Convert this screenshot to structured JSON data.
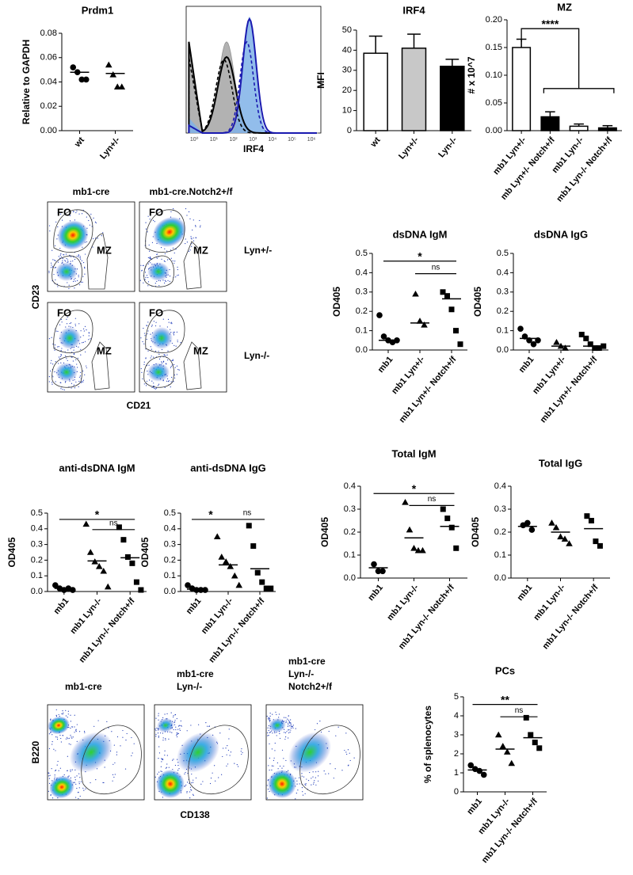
{
  "chart_data": [
    {
      "type": "dot",
      "title": "Prdm1",
      "ylabel": "Relative to GAPDH",
      "categories": [
        "wt",
        "Lyn+/-"
      ],
      "markers": [
        "circle",
        "triangle"
      ],
      "points": [
        [
          0.052,
          0.048,
          0.042,
          0.042
        ],
        [
          0.054,
          0.046,
          0.036,
          0.036
        ]
      ],
      "means": [
        0.048,
        0.047
      ],
      "ylim": [
        0,
        0.08
      ],
      "yticks": [
        {
          "value": 0,
          "label": "0.00"
        },
        {
          "value": 0.02,
          "label": "0.02"
        },
        {
          "value": 0.04,
          "label": "0.04"
        },
        {
          "value": 0.06,
          "label": "0.06"
        },
        {
          "value": 0.08,
          "label": "0.08"
        }
      ],
      "color": "#000000"
    },
    {
      "type": "flow-histogram",
      "xlabel": "IRF4",
      "xticks": [
        "10⁰",
        "10¹",
        "10²",
        "10³",
        "10⁴",
        "10⁵",
        "10⁶"
      ]
    },
    {
      "type": "bar",
      "title": "IRF4",
      "ylabel": "MFI",
      "categories": [
        "wt",
        "Lyn+/-",
        "Lyn-/-"
      ],
      "values": [
        38.5,
        41,
        32
      ],
      "errors": [
        8.5,
        7,
        3.5
      ],
      "colors": [
        "#ffffff",
        "#c8c8c8",
        "#000000"
      ],
      "ylim": [
        0,
        50
      ],
      "yticks": [
        0,
        10,
        20,
        30,
        40,
        50
      ]
    },
    {
      "type": "bar",
      "title": "MZ",
      "ylabel": "# x 10^7",
      "categories": [
        "mb1 Lyn+/-",
        "mb Lyn+/- Notch+/f",
        "mb1 Lyn-/-",
        "mb1 Lyn-/- Notch+/f"
      ],
      "values": [
        0.15,
        0.025,
        0.008,
        0.005
      ],
      "errors": [
        0.015,
        0.009,
        0.004,
        0.004
      ],
      "colors": [
        "#ffffff",
        "#000000",
        "#ffffff",
        "#000000"
      ],
      "ylim": [
        0,
        0.2
      ],
      "yticks": [
        {
          "value": 0,
          "label": "0.00"
        },
        {
          "value": 0.05,
          "label": "0.05"
        },
        {
          "value": 0.1,
          "label": "0.10"
        },
        {
          "value": 0.15,
          "label": "0.15"
        },
        {
          "value": 0.2,
          "label": "0.20"
        }
      ],
      "comparisons": [
        {
          "label": "****",
          "groups": [
            "mb1 Lyn+/-",
            [
              "mb Lyn+/- Notch+/f",
              "mb1 Lyn-/-",
              "mb1 Lyn-/- Notch+/f"
            ]
          ]
        }
      ]
    },
    {
      "type": "flow-grid",
      "columns": [
        "mb1-cre",
        "mb1-cre.Notch2+/f"
      ],
      "rows": [
        "Lyn+/-",
        "Lyn-/-"
      ],
      "gates": [
        "FO",
        "MZ"
      ],
      "ylabel": "CD23",
      "xlabel": "CD21"
    },
    {
      "type": "dot",
      "title": "dsDNA IgM",
      "ylabel": "OD405",
      "categories": [
        "mb1",
        "mb1 Lyn+/-",
        "mb1 Lyn+/- Notch+/f"
      ],
      "markers": [
        "circle",
        "triangle",
        "square"
      ],
      "points": [
        [
          0.18,
          0.07,
          0.05,
          0.04,
          0.05
        ],
        [
          0.29,
          0.15,
          0.13
        ],
        [
          0.3,
          0.28,
          0.21,
          0.1,
          0.03
        ]
      ],
      "means": [
        0.05,
        0.14,
        0.265
      ],
      "ylim": [
        0,
        0.5
      ],
      "yticks": [
        {
          "value": 0,
          "label": "0.0"
        },
        0.1,
        0.2,
        0.3,
        0.4,
        0.5
      ],
      "color": "#000000",
      "comparisons": [
        {
          "label": "*",
          "groups": [
            "mb1",
            "mb1 Lyn+/- Notch+/f"
          ]
        },
        {
          "label": "ns",
          "groups": [
            "mb1 Lyn+/-",
            "mb1 Lyn+/- Notch+/f"
          ]
        }
      ]
    },
    {
      "type": "dot",
      "title": "dsDNA IgG",
      "ylabel": "OD405",
      "categories": [
        "mb1",
        "mb1 Lyn+/-",
        "mb1 Lyn+/- Notch+/f"
      ],
      "markers": [
        "circle",
        "triangle",
        "square"
      ],
      "points": [
        [
          0.11,
          0.07,
          0.05,
          0.03,
          0.05
        ],
        [
          0.04,
          0.02,
          0.01
        ],
        [
          0.08,
          0.06,
          0.03,
          0.01,
          0.01,
          0.02
        ]
      ],
      "means": [
        0.06,
        0.02,
        0.02
      ],
      "ylim": [
        0,
        0.5
      ],
      "yticks": [
        {
          "value": 0,
          "label": "0.0"
        },
        0.1,
        0.2,
        0.3,
        0.4,
        0.5
      ],
      "color": "#000000"
    },
    {
      "type": "dot",
      "title": "anti-dsDNA IgM",
      "ylabel": "OD405",
      "categories": [
        "mb1",
        "mb1 Lyn-/-",
        "mb1 Lyn-/- Notch+/f"
      ],
      "markers": [
        "circle",
        "triangle",
        "square"
      ],
      "points": [
        [
          0.04,
          0.02,
          0.01,
          0.02,
          0.01
        ],
        [
          0.43,
          0.25,
          0.19,
          0.16,
          0.13,
          0.03
        ],
        [
          0.41,
          0.33,
          0.22,
          0.18,
          0.06,
          0.01
        ]
      ],
      "means": [
        0.02,
        0.195,
        0.215
      ],
      "ylim": [
        0,
        0.5
      ],
      "yticks": [
        {
          "value": 0,
          "label": "0.0"
        },
        0.1,
        0.2,
        0.3,
        0.4,
        0.5
      ],
      "color": "#000000",
      "comparisons": [
        {
          "label": "*",
          "groups": [
            "mb1",
            "mb1 Lyn-/- Notch+/f"
          ]
        },
        {
          "label": "ns",
          "groups": [
            "mb1 Lyn-/-",
            "mb1 Lyn-/- Notch+/f"
          ]
        }
      ]
    },
    {
      "type": "dot",
      "title": "anti-dsDNA IgG",
      "ylabel": "OD405",
      "categories": [
        "mb1",
        "mb1 Lyn-/-",
        "mb1 Lyn-/- Notch+/f"
      ],
      "markers": [
        "circle",
        "triangle",
        "square"
      ],
      "points": [
        [
          0.04,
          0.02,
          0.01,
          0.01,
          0.01
        ],
        [
          0.35,
          0.22,
          0.19,
          0.16,
          0.1,
          0.04
        ],
        [
          0.42,
          0.29,
          0.12,
          0.06,
          0.02,
          0.02
        ]
      ],
      "means": [
        0.015,
        0.17,
        0.145
      ],
      "ylim": [
        0,
        0.5
      ],
      "yticks": [
        {
          "value": 0,
          "label": "0.0"
        },
        0.1,
        0.2,
        0.3,
        0.4,
        0.5
      ],
      "color": "#000000",
      "comparisons": [
        {
          "label": "*",
          "groups": [
            "mb1",
            "mb1 Lyn-/-"
          ]
        },
        {
          "label": "ns",
          "groups": [
            "mb1 Lyn-/-",
            "mb1 Lyn-/- Notch+/f"
          ]
        }
      ],
      "same_level": true
    },
    {
      "type": "dot",
      "title": "Total IgM",
      "ylabel": "OD405",
      "categories": [
        "mb1",
        "mb1 Lyn-/-",
        "mb1 Lyn-/- Notch+/f"
      ],
      "markers": [
        "circle",
        "triangle",
        "square"
      ],
      "points": [
        [
          0.06,
          0.03,
          0.03
        ],
        [
          0.33,
          0.21,
          0.13,
          0.12,
          0.12
        ],
        [
          0.3,
          0.26,
          0.22,
          0.13
        ]
      ],
      "means": [
        0.045,
        0.175,
        0.225
      ],
      "ylim": [
        0,
        0.4
      ],
      "yticks": [
        {
          "value": 0,
          "label": "0.0"
        },
        0.1,
        0.2,
        0.3,
        0.4
      ],
      "color": "#000000",
      "comparisons": [
        {
          "label": "*",
          "groups": [
            "mb1",
            "mb1 Lyn-/- Notch+/f"
          ]
        },
        {
          "label": "ns",
          "groups": [
            "mb1 Lyn-/-",
            "mb1 Lyn-/- Notch+/f"
          ]
        }
      ]
    },
    {
      "type": "dot",
      "title": "Total IgG",
      "ylabel": "OD405",
      "categories": [
        "mb1",
        "mb1 Lyn-/-",
        "mb1 Lyn-/- Notch+/f"
      ],
      "markers": [
        "circle",
        "triangle",
        "square"
      ],
      "points": [
        [
          0.23,
          0.24,
          0.21
        ],
        [
          0.24,
          0.22,
          0.18,
          0.17,
          0.15
        ],
        [
          0.27,
          0.25,
          0.16,
          0.14
        ]
      ],
      "means": [
        0.225,
        0.2,
        0.215
      ],
      "ylim": [
        0,
        0.4
      ],
      "yticks": [
        {
          "value": 0,
          "label": "0.0"
        },
        0.1,
        0.2,
        0.3,
        0.4
      ],
      "color": "#000000"
    },
    {
      "type": "flow-row",
      "titles": [
        [
          "mb1-cre"
        ],
        [
          "mb1-cre",
          "Lyn-/-"
        ],
        [
          "mb1-cre",
          "Lyn-/-",
          "Notch2+/f"
        ]
      ],
      "ylabel": "B220",
      "xlabel": "CD138"
    },
    {
      "type": "dot",
      "title": "PCs",
      "ylabel": "% of splenocytes",
      "categories": [
        "mb1",
        "mb1 Lyn-/-",
        "mb1 Lyn-/- Notch+/f"
      ],
      "markers": [
        "circle",
        "triangle",
        "square"
      ],
      "points": [
        [
          1.4,
          1.2,
          1.1,
          0.9
        ],
        [
          3.0,
          2.4,
          2.1,
          1.5
        ],
        [
          3.9,
          3.0,
          2.6,
          2.3
        ]
      ],
      "means": [
        1.15,
        2.25,
        2.85
      ],
      "ylim": [
        0,
        5
      ],
      "yticks": [
        0,
        1,
        2,
        3,
        4,
        5
      ],
      "color": "#000000",
      "comparisons": [
        {
          "label": "**",
          "groups": [
            "mb1",
            "mb1 Lyn-/- Notch+/f"
          ]
        },
        {
          "label": "ns",
          "groups": [
            "mb1 Lyn-/-",
            "mb1 Lyn-/- Notch+/f"
          ]
        }
      ]
    }
  ]
}
